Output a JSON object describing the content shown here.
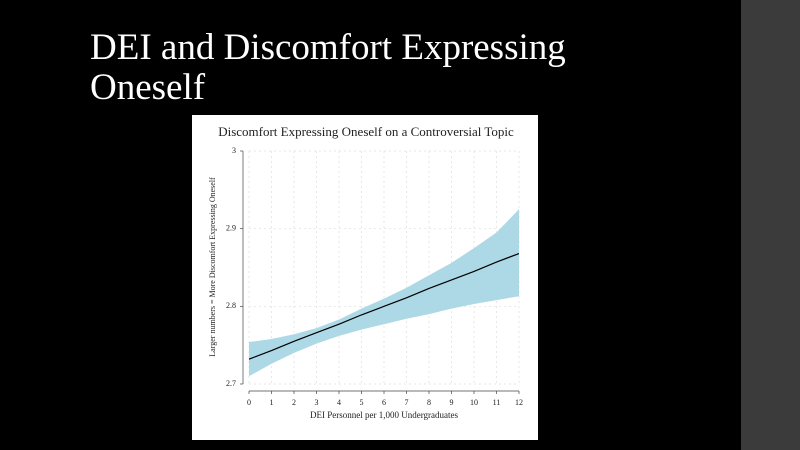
{
  "slide": {
    "title": "DEI and Discomfort Expressing Oneself"
  },
  "chart_data": {
    "type": "line",
    "title": "Discomfort Expressing Oneself on a Controversial Topic",
    "x_label": "DEI Personnel per 1,000 Undergraduates",
    "y_label": "Larger numbers = More Discomfort Expressing Oneself",
    "x": [
      0,
      1,
      2,
      3,
      4,
      5,
      6,
      7,
      8,
      9,
      10,
      11,
      12
    ],
    "line": {
      "color": "#000000",
      "values": [
        2.732,
        2.743,
        2.755,
        2.766,
        2.777,
        2.789,
        2.8,
        2.811,
        2.823,
        2.834,
        2.845,
        2.857,
        2.868
      ]
    },
    "band": {
      "color": "#add8e6",
      "lower": [
        2.71,
        2.726,
        2.74,
        2.752,
        2.762,
        2.77,
        2.777,
        2.784,
        2.79,
        2.797,
        2.803,
        2.808,
        2.813
      ],
      "upper": [
        2.754,
        2.758,
        2.764,
        2.772,
        2.783,
        2.797,
        2.81,
        2.824,
        2.84,
        2.856,
        2.875,
        2.895,
        2.925
      ]
    },
    "xlim": [
      0,
      12
    ],
    "xticks": [
      0,
      1,
      2,
      3,
      4,
      5,
      6,
      7,
      8,
      9,
      10,
      11,
      12
    ],
    "ylim": [
      2.7,
      3
    ],
    "yticks": [
      2.7,
      2.8,
      2.9,
      3
    ],
    "grid": true
  }
}
